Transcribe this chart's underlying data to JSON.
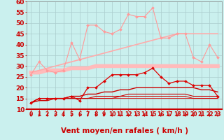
{
  "xlabel": "Vent moyen/en rafales ( km/h )",
  "bg_color": "#caf0ee",
  "grid_color": "#aacccc",
  "x": [
    0,
    1,
    2,
    3,
    4,
    5,
    6,
    7,
    8,
    9,
    10,
    11,
    12,
    13,
    14,
    15,
    16,
    17,
    18,
    19,
    20,
    21,
    22,
    23
  ],
  "ylim": [
    10,
    60
  ],
  "yticks": [
    10,
    15,
    20,
    25,
    30,
    35,
    40,
    45,
    50,
    55,
    60
  ],
  "series": [
    {
      "label": "rafales_jagged",
      "y": [
        26,
        32,
        28,
        27,
        28,
        41,
        33,
        49,
        49,
        46,
        45,
        47,
        54,
        53,
        53,
        57,
        43,
        43,
        45,
        45,
        34,
        32,
        40,
        34
      ],
      "color": "#ff9999",
      "linewidth": 0.8,
      "marker": "D",
      "markersize": 2.0,
      "zorder": 4
    },
    {
      "label": "trend_linear_upper",
      "y": [
        27,
        28,
        29,
        30,
        31,
        32,
        33,
        34,
        35,
        36,
        37,
        38,
        39,
        40,
        41,
        42,
        43,
        44,
        45,
        45,
        45,
        45,
        45,
        45
      ],
      "color": "#ffaaaa",
      "linewidth": 1.2,
      "marker": null,
      "markersize": 0,
      "zorder": 2
    },
    {
      "label": "broad_band",
      "y": [
        27,
        27,
        28,
        28,
        28,
        29,
        29,
        29,
        30,
        30,
        30,
        30,
        30,
        30,
        30,
        30,
        30,
        30,
        30,
        30,
        30,
        30,
        30,
        30
      ],
      "color": "#ffbbbb",
      "linewidth": 4.0,
      "marker": null,
      "markersize": 0,
      "zorder": 1
    },
    {
      "label": "vent_moyen_jagged",
      "y": [
        13,
        15,
        15,
        15,
        15,
        16,
        14,
        20,
        20,
        23,
        26,
        26,
        26,
        26,
        27,
        29,
        25,
        22,
        23,
        23,
        21,
        21,
        21,
        16
      ],
      "color": "#dd0000",
      "linewidth": 0.9,
      "marker": "D",
      "markersize": 2.0,
      "zorder": 5
    },
    {
      "label": "trend_mid",
      "y": [
        13,
        14,
        14,
        15,
        15,
        16,
        16,
        17,
        17,
        18,
        18,
        19,
        19,
        20,
        20,
        20,
        20,
        20,
        20,
        20,
        20,
        19,
        19,
        18
      ],
      "color": "#cc0000",
      "linewidth": 1.0,
      "marker": null,
      "markersize": 0,
      "zorder": 3
    },
    {
      "label": "trend_lower1",
      "y": [
        13,
        15,
        15,
        15,
        15,
        15,
        15,
        15,
        16,
        16,
        16,
        16,
        17,
        17,
        17,
        17,
        17,
        17,
        17,
        17,
        16,
        16,
        16,
        16
      ],
      "color": "#cc0000",
      "linewidth": 0.8,
      "marker": null,
      "markersize": 0,
      "zorder": 3
    },
    {
      "label": "trend_lower2",
      "y": [
        13,
        15,
        15,
        15,
        15,
        15,
        15,
        15,
        15,
        15,
        15,
        16,
        16,
        16,
        16,
        16,
        16,
        16,
        16,
        16,
        15,
        15,
        15,
        15
      ],
      "color": "#cc0000",
      "linewidth": 0.7,
      "marker": null,
      "markersize": 0,
      "zorder": 2
    },
    {
      "label": "trend_lower3",
      "y": [
        13,
        15,
        15,
        15,
        15,
        15,
        15,
        15,
        15,
        15,
        15,
        15,
        15,
        15,
        15,
        15,
        15,
        15,
        15,
        15,
        15,
        15,
        15,
        15
      ],
      "color": "#dd0000",
      "linewidth": 0.6,
      "marker": null,
      "markersize": 0,
      "zorder": 2
    }
  ],
  "xlabel_color": "#cc0000",
  "xlabel_fontsize": 7.5,
  "tick_color": "#cc0000",
  "tick_fontsize": 5.5,
  "ytick_fontsize": 6.5,
  "ytick_color": "#cc0000",
  "arrow_color": "#cc0000"
}
